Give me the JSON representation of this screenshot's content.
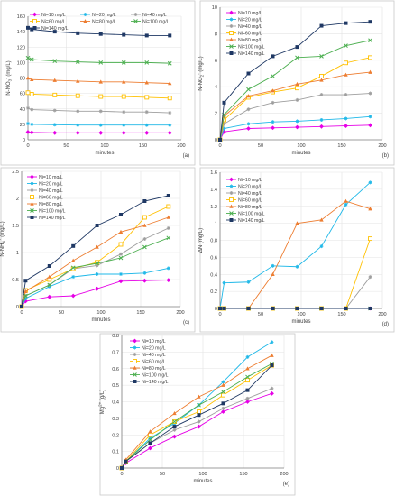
{
  "series_styles": [
    {
      "name": "Ni=10 mg/L",
      "color": "#e600e6",
      "marker": "diamond"
    },
    {
      "name": "Ni=20 mg/L",
      "color": "#1fb8e8",
      "marker": "star"
    },
    {
      "name": "Ni=40 mg/L",
      "color": "#9e9e9e",
      "marker": "star"
    },
    {
      "name": "Ni=60 mg/L",
      "color": "#ffc000",
      "marker": "square-open"
    },
    {
      "name": "Ni=80 mg/L",
      "color": "#ed7d31",
      "marker": "triangle"
    },
    {
      "name": "Ni=100 mg/L",
      "color": "#4caf50",
      "marker": "x"
    },
    {
      "name": "Ni=140 mg/L",
      "color": "#1f3864",
      "marker": "square"
    }
  ],
  "chart_data": [
    {
      "id": "a",
      "type": "line",
      "panel_label": "(a)",
      "ylabel_main": "N-NO",
      "ylabel_sub": "3",
      "ylabel_sup": "-",
      "ylabel_tail": " (mg/L)",
      "xlabel": "minutes",
      "xlim": [
        0,
        200
      ],
      "ylim": [
        0,
        160
      ],
      "xticks": [
        0,
        50,
        100,
        150,
        200
      ],
      "yticks": [
        0,
        20,
        40,
        60,
        80,
        100,
        120,
        140,
        160
      ],
      "legend": "top-left-3col",
      "x": [
        0,
        5,
        35,
        65,
        95,
        125,
        155,
        185
      ],
      "series": [
        {
          "name": "Ni=10 mg/L",
          "values": [
            10,
            9.5,
            9,
            9,
            9,
            9,
            9,
            9
          ]
        },
        {
          "name": "Ni=20 mg/L",
          "values": [
            21,
            20,
            19.5,
            19,
            19,
            19,
            19,
            19
          ]
        },
        {
          "name": "Ni=40 mg/L",
          "values": [
            41,
            39,
            38,
            37,
            37,
            36,
            36,
            35
          ]
        },
        {
          "name": "Ni=60 mg/L",
          "values": [
            61,
            59,
            58,
            57,
            56,
            56,
            55,
            54
          ]
        },
        {
          "name": "Ni=80 mg/L",
          "values": [
            80,
            78,
            77,
            76,
            75,
            75,
            74,
            73
          ]
        },
        {
          "name": "Ni=100 mg/L",
          "values": [
            106,
            104,
            102,
            101,
            100,
            100,
            100,
            99
          ]
        },
        {
          "name": "Ni=140 mg/L",
          "values": [
            145,
            143,
            140,
            138,
            137,
            136,
            135,
            135
          ]
        }
      ]
    },
    {
      "id": "b",
      "type": "line",
      "panel_label": "(b)",
      "ylabel_main": "N-NO",
      "ylabel_sub": "2",
      "ylabel_sup": "-",
      "ylabel_tail": " (mg/L)",
      "xlabel": "minutes",
      "xlim": [
        0,
        200
      ],
      "ylim": [
        0,
        10
      ],
      "xticks": [
        0,
        50,
        100,
        150,
        200
      ],
      "yticks": [
        0,
        2,
        4,
        6,
        8,
        10
      ],
      "legend": "top-left-1col",
      "x": [
        0,
        5,
        35,
        65,
        95,
        125,
        155,
        185
      ],
      "series": [
        {
          "name": "Ni=10 mg/L",
          "values": [
            0,
            0.6,
            0.85,
            0.9,
            0.95,
            1.0,
            1.05,
            1.1
          ]
        },
        {
          "name": "Ni=20 mg/L",
          "values": [
            0,
            0.85,
            1.2,
            1.35,
            1.4,
            1.5,
            1.6,
            1.75
          ]
        },
        {
          "name": "Ni=40 mg/L",
          "values": [
            0,
            1.2,
            2.3,
            2.8,
            3.0,
            3.4,
            3.4,
            3.5
          ]
        },
        {
          "name": "Ni=60 mg/L",
          "values": [
            0,
            1.5,
            3.2,
            3.6,
            3.9,
            4.8,
            5.8,
            6.2
          ]
        },
        {
          "name": "Ni=80 mg/L",
          "values": [
            0,
            1.8,
            3.3,
            3.7,
            4.2,
            4.5,
            4.9,
            5.1
          ]
        },
        {
          "name": "Ni=100 mg/L",
          "values": [
            0,
            1.9,
            3.8,
            4.8,
            6.2,
            6.3,
            7.1,
            7.5
          ]
        },
        {
          "name": "Ni=140 mg/L",
          "values": [
            0,
            2.8,
            5.0,
            6.3,
            7.0,
            8.6,
            8.8,
            8.9
          ]
        }
      ]
    },
    {
      "id": "c",
      "type": "line",
      "panel_label": "(c)",
      "ylabel_main": "N-NH",
      "ylabel_sub": "4",
      "ylabel_sup": "+",
      "ylabel_tail": " (mg/L)",
      "xlabel": "minutes",
      "xlim": [
        0,
        200
      ],
      "ylim": [
        0,
        2.5
      ],
      "xticks": [
        0,
        50,
        100,
        150,
        200
      ],
      "yticks": [
        0,
        0.5,
        1,
        1.5,
        2,
        2.5
      ],
      "ytick_labels": [
        "0",
        "0.5",
        "1",
        "1.5",
        "2",
        "2.5"
      ],
      "legend": "top-left-1col",
      "x": [
        0,
        5,
        35,
        65,
        95,
        125,
        155,
        185
      ],
      "series": [
        {
          "name": "Ni=10 mg/L",
          "values": [
            0,
            0.1,
            0.18,
            0.2,
            0.33,
            0.47,
            0.48,
            0.49
          ]
        },
        {
          "name": "Ni=20 mg/L",
          "values": [
            0,
            0.15,
            0.37,
            0.55,
            0.6,
            0.6,
            0.62,
            0.71
          ]
        },
        {
          "name": "Ni=40 mg/L",
          "values": [
            0,
            0.2,
            0.4,
            0.7,
            0.76,
            0.97,
            1.25,
            1.45
          ]
        },
        {
          "name": "Ni=60 mg/L",
          "values": [
            0,
            0.3,
            0.5,
            0.7,
            0.82,
            1.15,
            1.65,
            1.85
          ]
        },
        {
          "name": "Ni=80 mg/L",
          "values": [
            0,
            0.28,
            0.55,
            0.85,
            1.1,
            1.38,
            1.5,
            1.65
          ]
        },
        {
          "name": "Ni=100 mg/L",
          "values": [
            0,
            0.2,
            0.4,
            0.72,
            0.8,
            0.9,
            1.1,
            1.27
          ]
        },
        {
          "name": "Ni=140 mg/L",
          "values": [
            0,
            0.48,
            0.75,
            1.12,
            1.5,
            1.7,
            1.95,
            2.05
          ]
        }
      ]
    },
    {
      "id": "d",
      "type": "line",
      "panel_label": "(d)",
      "ylabel_main": "ΔN",
      "ylabel_sub": "",
      "ylabel_sup": "",
      "ylabel_tail": " (mg/L)",
      "xlabel": "minutes",
      "xlim": [
        0,
        200
      ],
      "ylim": [
        0,
        1.6
      ],
      "xticks": [
        0,
        50,
        100,
        150,
        200
      ],
      "yticks": [
        0,
        0.2,
        0.4,
        0.6,
        0.8,
        1.0,
        1.2,
        1.4,
        1.6
      ],
      "ytick_labels": [
        "0",
        "0.2",
        "0.4",
        "0.6",
        "0.8",
        "1",
        "1.2",
        "1.4",
        "1.6"
      ],
      "legend": "top-left-1col",
      "x": [
        0,
        5,
        35,
        65,
        95,
        125,
        155,
        185
      ],
      "series": [
        {
          "name": "Ni=10 mg/L",
          "values": [
            0,
            0,
            0,
            0,
            0,
            0,
            0,
            0
          ]
        },
        {
          "name": "Ni=20 mg/L",
          "values": [
            0,
            0.3,
            0.31,
            0.5,
            0.49,
            0.73,
            1.22,
            1.48
          ]
        },
        {
          "name": "Ni=40 mg/L",
          "values": [
            0,
            0,
            0,
            0,
            0,
            0,
            0,
            0.37
          ]
        },
        {
          "name": "Ni=60 mg/L",
          "values": [
            0,
            0,
            0,
            0,
            0,
            0,
            0,
            0.82
          ]
        },
        {
          "name": "Ni=80 mg/L",
          "values": [
            0,
            0,
            0,
            0.4,
            1.0,
            1.04,
            1.26,
            1.17
          ]
        },
        {
          "name": "Ni=100 mg/L",
          "values": [
            0,
            0,
            0,
            0,
            0,
            0,
            0,
            0
          ]
        },
        {
          "name": "Ni=140 mg/L",
          "values": [
            0,
            0,
            0,
            0,
            0,
            0,
            0,
            0
          ]
        }
      ]
    },
    {
      "id": "e",
      "type": "line",
      "panel_label": "(e)",
      "ylabel_main": "Mg",
      "ylabel_sub": "",
      "ylabel_sup": "2+",
      "ylabel_tail": " (g/L)",
      "xlabel": "minutes",
      "xlim": [
        0,
        200
      ],
      "ylim": [
        0,
        0.8
      ],
      "xticks": [
        0,
        50,
        100,
        150,
        200
      ],
      "yticks": [
        0,
        0.1,
        0.2,
        0.3,
        0.4,
        0.5,
        0.6,
        0.7,
        0.8
      ],
      "ytick_labels": [
        "0",
        "0.1",
        "0.2",
        "0.3",
        "0.4",
        "0.5",
        "0.6",
        "0.7",
        "0.8"
      ],
      "legend": "top-left-1col",
      "x": [
        0,
        5,
        35,
        65,
        95,
        125,
        155,
        185
      ],
      "series": [
        {
          "name": "Ni=10 mg/L",
          "values": [
            0,
            0.03,
            0.12,
            0.19,
            0.25,
            0.34,
            0.4,
            0.45
          ]
        },
        {
          "name": "Ni=20 mg/L",
          "values": [
            0,
            0.04,
            0.18,
            0.27,
            0.38,
            0.52,
            0.67,
            0.76
          ]
        },
        {
          "name": "Ni=40 mg/L",
          "values": [
            0,
            0.04,
            0.15,
            0.23,
            0.28,
            0.36,
            0.42,
            0.48
          ]
        },
        {
          "name": "Ni=60 mg/L",
          "values": [
            0,
            0.04,
            0.2,
            0.28,
            0.34,
            0.44,
            0.53,
            0.62
          ]
        },
        {
          "name": "Ni=80 mg/L",
          "values": [
            0,
            0.05,
            0.22,
            0.33,
            0.43,
            0.5,
            0.6,
            0.68
          ]
        },
        {
          "name": "Ni=100 mg/L",
          "values": [
            0,
            0.04,
            0.17,
            0.28,
            0.38,
            0.46,
            0.55,
            0.63
          ]
        },
        {
          "name": "Ni=140 mg/L",
          "values": [
            0,
            0.04,
            0.15,
            0.25,
            0.32,
            0.39,
            0.47,
            0.62
          ]
        }
      ]
    }
  ]
}
